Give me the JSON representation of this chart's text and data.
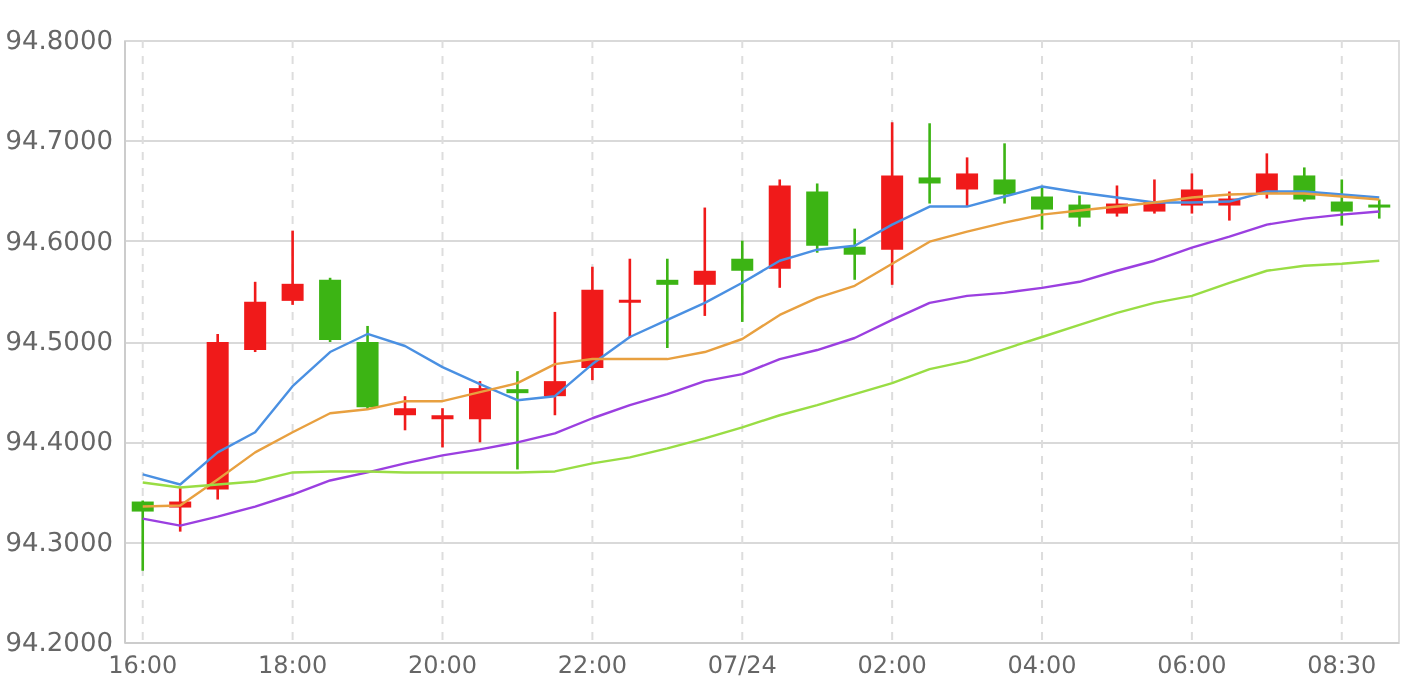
{
  "chart_data": {
    "type": "candlestick",
    "categories": [
      "16:00",
      null,
      null,
      null,
      "18:00",
      null,
      null,
      null,
      "20:00",
      null,
      null,
      null,
      "22:00",
      null,
      null,
      null,
      "07/24",
      null,
      null,
      null,
      "02:00",
      null,
      null,
      null,
      "04:00",
      null,
      null,
      null,
      "06:00",
      null,
      null,
      null,
      "08:30",
      null
    ],
    "ohlc": [
      [
        94.34,
        94.341,
        94.271,
        94.33
      ],
      [
        94.334,
        94.354,
        94.31,
        94.34
      ],
      [
        94.352,
        94.507,
        94.342,
        94.499
      ],
      [
        94.491,
        94.559,
        94.489,
        94.539
      ],
      [
        94.54,
        94.61,
        94.536,
        94.557
      ],
      [
        94.561,
        94.563,
        94.499,
        94.501
      ],
      [
        94.499,
        94.515,
        94.432,
        94.434
      ],
      [
        94.426,
        94.445,
        94.411,
        94.433
      ],
      [
        94.422,
        94.433,
        94.394,
        94.426
      ],
      [
        94.422,
        94.46,
        94.399,
        94.453
      ],
      [
        94.452,
        94.47,
        94.372,
        94.448
      ],
      [
        94.445,
        94.529,
        94.426,
        94.46
      ],
      [
        94.473,
        94.574,
        94.461,
        94.551
      ],
      [
        94.538,
        94.582,
        94.503,
        94.541
      ],
      [
        94.561,
        94.582,
        94.493,
        94.556
      ],
      [
        94.556,
        94.633,
        94.525,
        94.57
      ],
      [
        94.582,
        94.6,
        94.519,
        94.57
      ],
      [
        94.572,
        94.661,
        94.553,
        94.655
      ],
      [
        94.649,
        94.657,
        94.588,
        94.595
      ],
      [
        94.594,
        94.612,
        94.561,
        94.586
      ],
      [
        94.591,
        94.718,
        94.556,
        94.665
      ],
      [
        94.663,
        94.717,
        94.637,
        94.657
      ],
      [
        94.651,
        94.683,
        94.634,
        94.667
      ],
      [
        94.661,
        94.697,
        94.637,
        94.646
      ],
      [
        94.644,
        94.654,
        94.611,
        94.631
      ],
      [
        94.636,
        94.645,
        94.614,
        94.623
      ],
      [
        94.627,
        94.655,
        94.624,
        94.637
      ],
      [
        94.629,
        94.661,
        94.627,
        94.639
      ],
      [
        94.635,
        94.667,
        94.627,
        94.651
      ],
      [
        94.635,
        94.649,
        94.62,
        94.642
      ],
      [
        94.647,
        94.687,
        94.642,
        94.667
      ],
      [
        94.665,
        94.673,
        94.639,
        94.641
      ],
      [
        94.639,
        94.661,
        94.615,
        94.629
      ],
      [
        94.636,
        94.641,
        94.622,
        94.633
      ]
    ],
    "colors": [
      "#3cb414",
      "#f01a1a",
      "#f01a1a",
      "#f01a1a",
      "#f01a1a",
      "#3cb414",
      "#3cb414",
      "#f01a1a",
      "#f01a1a",
      "#f01a1a",
      "#3cb414",
      "#f01a1a",
      "#f01a1a",
      "#f01a1a",
      "#3cb414",
      "#f01a1a",
      "#3cb414",
      "#f01a1a",
      "#3cb414",
      "#3cb414",
      "#f01a1a",
      "#3cb414",
      "#f01a1a",
      "#3cb414",
      "#3cb414",
      "#3cb414",
      "#f01a1a",
      "#f01a1a",
      "#f01a1a",
      "#f01a1a",
      "#f01a1a",
      "#3cb414",
      "#3cb414",
      "#3cb414"
    ],
    "series": [
      {
        "type": "line",
        "color": "#4a90e2",
        "values": [
          94.367,
          94.357,
          94.389,
          94.409,
          94.455,
          94.489,
          94.507,
          94.495,
          94.474,
          94.457,
          94.441,
          94.445,
          94.477,
          94.504,
          94.521,
          94.538,
          94.558,
          94.58,
          94.591,
          94.595,
          94.616,
          94.634,
          94.634,
          94.644,
          94.654,
          94.648,
          94.643,
          94.638,
          94.638,
          94.639,
          94.649,
          94.649,
          94.646,
          94.643
        ]
      },
      {
        "type": "line",
        "color": "#e8a040",
        "values": [
          94.335,
          94.336,
          94.362,
          94.389,
          94.409,
          94.428,
          94.432,
          94.44,
          94.44,
          94.449,
          94.458,
          94.477,
          94.482,
          94.482,
          94.482,
          94.489,
          94.502,
          94.526,
          94.543,
          94.555,
          94.577,
          94.599,
          94.609,
          94.618,
          94.626,
          94.63,
          94.634,
          94.638,
          94.643,
          94.646,
          94.647,
          94.647,
          94.644,
          94.641
        ]
      },
      {
        "type": "line",
        "color": "#9b3fe0",
        "values": [
          94.323,
          94.316,
          94.325,
          94.335,
          94.347,
          94.361,
          94.369,
          94.378,
          94.386,
          94.392,
          94.399,
          94.408,
          94.423,
          94.436,
          94.447,
          94.46,
          94.467,
          94.482,
          94.491,
          94.503,
          94.521,
          94.538,
          94.545,
          94.548,
          94.553,
          94.559,
          94.57,
          94.58,
          94.593,
          94.604,
          94.616,
          94.622,
          94.626,
          94.629
        ]
      },
      {
        "type": "line",
        "color": "#99dd44",
        "values": [
          94.359,
          94.354,
          94.357,
          94.36,
          94.369,
          94.37,
          94.37,
          94.369,
          94.369,
          94.369,
          94.369,
          94.37,
          94.378,
          94.384,
          94.393,
          94.403,
          94.414,
          94.426,
          94.436,
          94.447,
          94.458,
          94.472,
          94.48,
          94.492,
          94.504,
          94.516,
          94.528,
          94.538,
          94.545,
          94.558,
          94.57,
          94.575,
          94.577,
          94.58
        ]
      }
    ],
    "ylim": [
      94.2,
      94.8
    ],
    "yticks": [
      {
        "value": 94.2,
        "label": "94.2000"
      },
      {
        "value": 94.3,
        "label": "94.3000"
      },
      {
        "value": 94.4,
        "label": "94.4000"
      },
      {
        "value": 94.5,
        "label": "94.5000"
      },
      {
        "value": 94.6,
        "label": "94.6000"
      },
      {
        "value": 94.7,
        "label": "94.7000"
      },
      {
        "value": 94.8,
        "label": "94.8000"
      }
    ],
    "grid": true,
    "marker": "none",
    "line_style": "solid"
  }
}
